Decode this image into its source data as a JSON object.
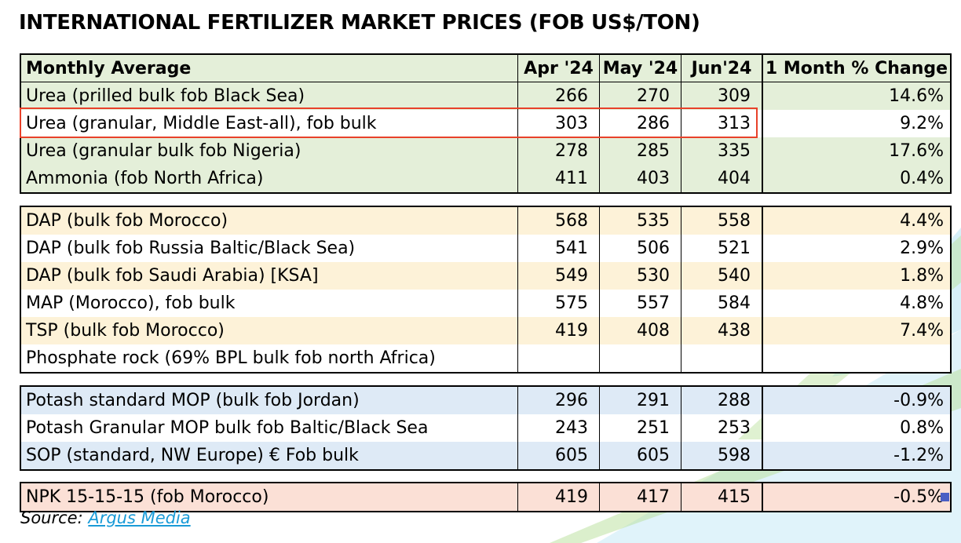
{
  "title": "INTERNATIONAL FERTILIZER MARKET PRICES (FOB US$/TON)",
  "header": {
    "label": "Monthly Average",
    "col1": "Apr '24",
    "col2": "May '24",
    "col3": "Jun'24",
    "col4": "1 Month % Change"
  },
  "colors": {
    "green_band": "#e4efd9",
    "yellow_band": "#fdf2d8",
    "blue_band": "#deeaf6",
    "salmon_band": "#fbe0d6",
    "highlight": "#e8412a",
    "link": "#1a9bd7"
  },
  "sections": [
    {
      "band": "green",
      "rows": [
        {
          "name": "Urea (prilled bulk fob Black Sea)",
          "apr": "266",
          "may": "270",
          "jun": "309",
          "pct": "14.6%",
          "shaded": true
        },
        {
          "name": "Urea (granular, Middle East-all), fob bulk",
          "apr": "303",
          "may": "286",
          "jun": "313",
          "pct": "9.2%",
          "shaded": false
        },
        {
          "name": "Urea (granular bulk fob Nigeria)",
          "apr": "278",
          "may": "285",
          "jun": "335",
          "pct": "17.6%",
          "shaded": true
        },
        {
          "name": "Ammonia (fob North Africa)",
          "apr": "411",
          "may": "403",
          "jun": "404",
          "pct": "0.4%",
          "shaded": true
        }
      ]
    },
    {
      "band": "yellow",
      "rows": [
        {
          "name": "DAP (bulk fob Morocco)",
          "apr": "568",
          "may": "535",
          "jun": "558",
          "pct": "4.4%",
          "shaded": true
        },
        {
          "name": "DAP (bulk fob Russia Baltic/Black Sea)",
          "apr": "541",
          "may": "506",
          "jun": "521",
          "pct": "2.9%",
          "shaded": false
        },
        {
          "name": "DAP (bulk fob Saudi Arabia) [KSA]",
          "apr": "549",
          "may": "530",
          "jun": "540",
          "pct": "1.8%",
          "shaded": true
        },
        {
          "name": "MAP (Morocco), fob bulk",
          "apr": "575",
          "may": "557",
          "jun": "584",
          "pct": "4.8%",
          "shaded": false
        },
        {
          "name": "TSP (bulk fob Morocco)",
          "apr": "419",
          "may": "408",
          "jun": "438",
          "pct": "7.4%",
          "shaded": true
        },
        {
          "name": "Phosphate rock (69% BPL bulk fob north Africa)",
          "apr": "",
          "may": "",
          "jun": "",
          "pct": "",
          "shaded": false
        }
      ]
    },
    {
      "band": "blue",
      "rows": [
        {
          "name": "Potash standard MOP (bulk fob Jordan)",
          "apr": "296",
          "may": "291",
          "jun": "288",
          "pct": "-0.9%",
          "shaded": true
        },
        {
          "name": "Potash Granular MOP bulk fob Baltic/Black Sea",
          "apr": "243",
          "may": "251",
          "jun": "253",
          "pct": "0.8%",
          "shaded": false
        },
        {
          "name": "SOP (standard, NW Europe) € Fob bulk",
          "apr": "605",
          "may": "605",
          "jun": "598",
          "pct": "-1.2%",
          "shaded": true
        }
      ]
    },
    {
      "band": "salmon",
      "rows": [
        {
          "name": "NPK 15-15-15 (fob Morocco)",
          "apr": "419",
          "may": "417",
          "jun": "415",
          "pct": "-0.5%",
          "shaded": true
        }
      ]
    }
  ],
  "source": {
    "prefix": "Source: ",
    "link_text": "Argus Media"
  }
}
